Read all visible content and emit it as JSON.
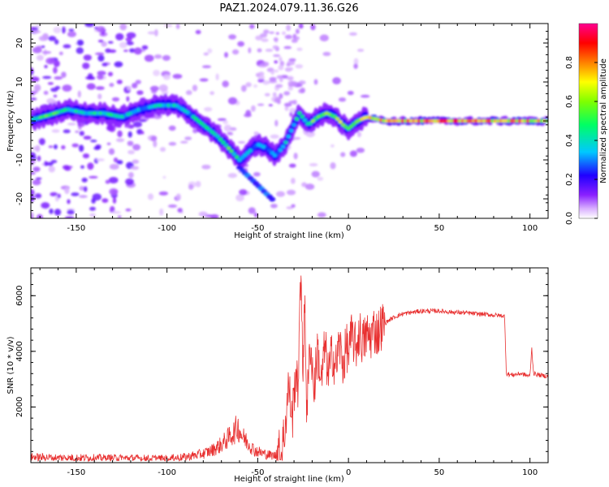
{
  "title": "PAZ1.2024.079.11.36.G26",
  "colorbar": {
    "label": "Normalized spectral amplitude",
    "ticks": [
      "0.0",
      "0.2",
      "0.4",
      "0.6",
      "0.8"
    ],
    "tick_values": [
      0.0,
      0.2,
      0.4,
      0.6,
      0.8
    ],
    "range": [
      0,
      1
    ],
    "colors": [
      "#ffffff",
      "#e8c8f8",
      "#a040ff",
      "#5a00d0",
      "#0000ff",
      "#00c8ff",
      "#00ff64",
      "#60ff00",
      "#ffff00",
      "#ff8000",
      "#ff0000",
      "#ff0090"
    ]
  },
  "chart_data": [
    {
      "type": "heatmap",
      "name": "spectrogram",
      "xlabel": "Height of straight line (km)",
      "ylabel": "Frequency (Hz)",
      "xlim": [
        -175,
        110
      ],
      "ylim": [
        -25,
        25
      ],
      "x_ticks": [
        -150,
        -100,
        -50,
        0,
        50,
        100
      ],
      "y_ticks": [
        -20,
        -10,
        0,
        10,
        20
      ],
      "ridge": {
        "x": [
          -173,
          -165,
          -155,
          -145,
          -135,
          -125,
          -115,
          -105,
          -95,
          -88,
          -80,
          -72,
          -66,
          -60,
          -55,
          -50,
          -45,
          -40,
          -35,
          -32,
          -27,
          -22,
          -17,
          -12,
          -7,
          -3,
          0,
          5,
          10,
          20,
          40,
          60,
          80,
          100,
          110
        ],
        "y": [
          0.5,
          1.5,
          3,
          2,
          2,
          1,
          3,
          4,
          4,
          2,
          -1,
          -4,
          -7,
          -10,
          -8,
          -6,
          -7,
          -9,
          -6,
          -3,
          2,
          -1,
          1,
          2,
          1,
          -1,
          -2,
          0,
          1,
          0,
          0,
          0,
          0,
          0,
          0
        ],
        "amplitude": [
          0.45,
          0.5,
          0.45,
          0.4,
          0.45,
          0.4,
          0.35,
          0.4,
          0.4,
          0.35,
          0.45,
          0.45,
          0.5,
          0.45,
          0.35,
          0.3,
          0.3,
          0.35,
          0.35,
          0.35,
          0.45,
          0.5,
          0.55,
          0.55,
          0.6,
          0.6,
          0.5,
          0.55,
          0.7,
          0.8,
          0.75,
          0.8,
          0.75,
          0.75,
          0.7
        ]
      },
      "grid": false
    },
    {
      "type": "line",
      "name": "snr",
      "xlabel": "Height of straight line (km)",
      "ylabel": "SNR (10 * v/v)",
      "xlim": [
        -175,
        110
      ],
      "ylim": [
        0,
        7000
      ],
      "x_ticks": [
        -150,
        -100,
        -50,
        0,
        50,
        100
      ],
      "y_ticks": [
        2000,
        4000,
        6000
      ],
      "color": "#e83030",
      "grid": false,
      "series": [
        {
          "x": [
            -175,
            -160,
            -140,
            -120,
            -100,
            -90,
            -80,
            -75,
            -70,
            -66,
            -63,
            -61,
            -58,
            -55,
            -52,
            -48,
            -44,
            -40,
            -37,
            -35,
            -33,
            -31,
            -29,
            -28,
            -26,
            -25,
            -24,
            -23,
            -21,
            -19,
            -17,
            -15,
            -13,
            -11,
            -9,
            -7,
            -5,
            -3,
            -1,
            0,
            2,
            4,
            6,
            8,
            10,
            12,
            14,
            16,
            18,
            20,
            23,
            26,
            30,
            35,
            40,
            45,
            50,
            55,
            60,
            65,
            70,
            75,
            80,
            85,
            86,
            87,
            90,
            95,
            100,
            101,
            102,
            105,
            110
          ],
          "y": [
            200,
            180,
            170,
            160,
            150,
            200,
            320,
            450,
            650,
            900,
            1100,
            1300,
            900,
            700,
            450,
            350,
            280,
            250,
            400,
            1200,
            2800,
            1500,
            3400,
            2500,
            7000,
            3000,
            6000,
            1800,
            4400,
            2600,
            4100,
            2800,
            4200,
            3100,
            4000,
            3400,
            4300,
            3500,
            4200,
            3900,
            4600,
            4100,
            4700,
            4300,
            4600,
            4500,
            4800,
            4650,
            4900,
            5000,
            5150,
            5250,
            5350,
            5400,
            5450,
            5450,
            5450,
            5420,
            5400,
            5380,
            5350,
            5330,
            5300,
            5280,
            5250,
            3200,
            3150,
            3200,
            3100,
            4100,
            3200,
            3150,
            3100
          ]
        }
      ]
    }
  ]
}
